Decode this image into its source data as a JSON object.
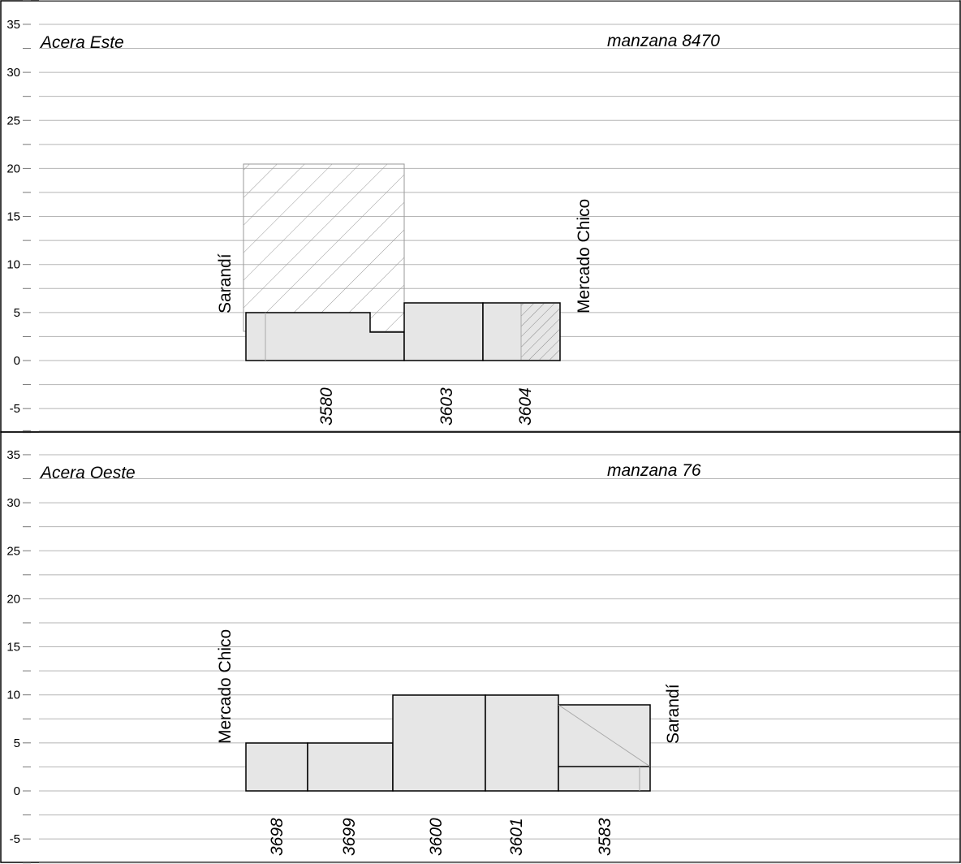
{
  "chart_data": [
    {
      "type": "diagram",
      "title": "Acera Este",
      "subtitle": "manzana 8470",
      "y_axis": {
        "ticks": [
          35,
          30,
          25,
          20,
          15,
          10,
          5,
          0,
          -5
        ],
        "ylim": [
          -7.5,
          37.5
        ]
      },
      "left_street": "Sarandí",
      "right_street": "Mercado Chico",
      "colors": {
        "building": "#e6e6e6",
        "hatch": "#9a9a9a",
        "grid": "#b5b5b5"
      },
      "lots": [
        {
          "label": "3580",
          "heights": [
            5,
            3
          ],
          "hatched_volume_height": 20.5
        },
        {
          "label": "3603",
          "height": 6
        },
        {
          "label": "3604",
          "height": 6,
          "partly_hatched": true
        }
      ]
    },
    {
      "type": "diagram",
      "title": "Acera Oeste",
      "subtitle": "manzana 76",
      "y_axis": {
        "ticks": [
          35,
          30,
          25,
          20,
          15,
          10,
          5,
          0,
          -5
        ],
        "ylim": [
          -7.5,
          37.5
        ]
      },
      "left_street": "Mercado Chico",
      "right_street": "Sarandí",
      "colors": {
        "building": "#e6e6e6",
        "grid": "#b5b5b5"
      },
      "lots": [
        {
          "label": "3698",
          "height": 5
        },
        {
          "label": "3699",
          "height": 5
        },
        {
          "label": "3600",
          "height": 10
        },
        {
          "label": "3601",
          "height": 10
        },
        {
          "label": "3583",
          "heights": [
            9,
            2.5
          ]
        }
      ]
    }
  ]
}
